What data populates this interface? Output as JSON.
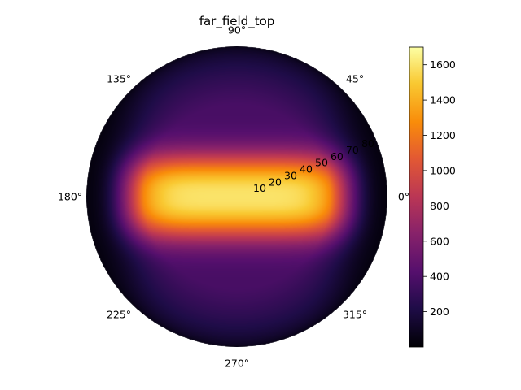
{
  "chart_data": {
    "type": "heatmap",
    "projection": "polar",
    "title": "far_field_top",
    "colormap": "inferno",
    "grid": false,
    "angular_ticks": [
      "0°",
      "45°",
      "90°",
      "135°",
      "180°",
      "225°",
      "270°",
      "315°"
    ],
    "angular_tick_degrees": [
      0,
      45,
      90,
      135,
      180,
      225,
      270,
      315
    ],
    "radial_ticks": [
      "10",
      "20",
      "30",
      "40",
      "50",
      "60",
      "70",
      "80"
    ],
    "radial_tick_values": [
      10,
      20,
      30,
      40,
      50,
      60,
      70,
      80
    ],
    "radial_range": [
      0,
      90
    ],
    "radial_label_angle_deg": 22.5,
    "colorbar": {
      "range": [
        0,
        1700
      ],
      "ticks": [
        200,
        400,
        600,
        800,
        1000,
        1200,
        1400,
        1600
      ],
      "tick_labels": [
        "200",
        "400",
        "600",
        "800",
        "1000",
        "1200",
        "1400",
        "1600"
      ]
    },
    "field": {
      "description_of_shape": "bright horizontal band along 0°-180° axis, dark at rim",
      "peak_value": 1700,
      "peak_region_theta_deg": 0
    }
  }
}
